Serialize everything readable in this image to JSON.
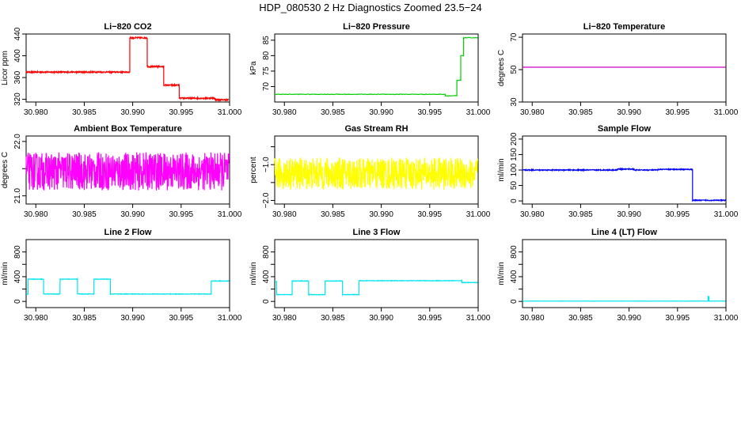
{
  "main_title": "HDP_080530  2 Hz Diagnostics Zoomed 23.5−24",
  "chart_data": [
    {
      "type": "line",
      "title": "Li−820 CO2",
      "ylabel": "Licor ppm",
      "color": "#ff0000",
      "xlim": [
        30.979,
        31.0
      ],
      "ylim": [
        315,
        440
      ],
      "x_ticks": [
        30.98,
        30.985,
        30.99,
        30.995,
        31.0
      ],
      "x_tick_labels": [
        "30.980",
        "30.985",
        "30.990",
        "30.995",
        "31.000"
      ],
      "y_ticks": [
        320,
        360,
        400,
        440
      ],
      "y_tick_labels": [
        "320",
        "360",
        "400",
        "440"
      ],
      "segments": [
        {
          "x": [
            30.979,
            30.9897
          ],
          "y": 370
        },
        {
          "x": [
            30.9897,
            30.9915
          ],
          "y": 433
        },
        {
          "x": [
            30.9915,
            30.9932
          ],
          "y": 380
        },
        {
          "x": [
            30.9932,
            30.9948
          ],
          "y": 346
        },
        {
          "x": [
            30.9948,
            30.9985
          ],
          "y": 322
        },
        {
          "x": [
            30.9985,
            30.9999
          ],
          "y": 319
        }
      ],
      "noise": 1.2,
      "flat": false
    },
    {
      "type": "line",
      "title": "Li−820 Pressure",
      "ylabel": "kPa",
      "color": "#00cc00",
      "xlim": [
        30.979,
        31.0
      ],
      "ylim": [
        65,
        87
      ],
      "x_ticks": [
        30.98,
        30.985,
        30.99,
        30.995,
        31.0
      ],
      "x_tick_labels": [
        "30.980",
        "30.985",
        "30.990",
        "30.995",
        "31.000"
      ],
      "y_ticks": [
        70,
        75,
        80,
        85
      ],
      "y_tick_labels": [
        "70",
        "75",
        "80",
        "85"
      ],
      "segments": [
        {
          "x": [
            30.979,
            30.9966
          ],
          "y": 67.5
        },
        {
          "x": [
            30.9966,
            30.9978
          ],
          "y": 67.0
        },
        {
          "x": [
            30.9978,
            30.9982
          ],
          "y": 72.0
        },
        {
          "x": [
            30.9982,
            30.9985
          ],
          "y": 80.0
        },
        {
          "x": [
            30.9985,
            30.99995
          ],
          "y": 85.8
        }
      ],
      "noise": 0.1,
      "flat": false
    },
    {
      "type": "line",
      "title": "Li−820 Temperature",
      "ylabel": "degrees C",
      "color": "#cc00cc",
      "xlim": [
        30.979,
        31.0
      ],
      "ylim": [
        30,
        72
      ],
      "x_ticks": [
        30.98,
        30.985,
        30.99,
        30.995,
        31.0
      ],
      "x_tick_labels": [
        "30.980",
        "30.985",
        "30.990",
        "30.995",
        "31.000"
      ],
      "y_ticks": [
        30,
        50,
        70
      ],
      "y_tick_labels": [
        "30",
        "50",
        "70"
      ],
      "segments": [
        {
          "x": [
            30.979,
            30.99995
          ],
          "y": 51.5
        }
      ],
      "noise": 0.05,
      "flat": true
    },
    {
      "type": "line",
      "title": "Ambient Box Temperature",
      "ylabel": "degrees C",
      "color": "#ff00ff",
      "xlim": [
        30.979,
        31.0
      ],
      "ylim": [
        20.85,
        22.1
      ],
      "x_ticks": [
        30.98,
        30.985,
        30.99,
        30.995,
        31.0
      ],
      "x_tick_labels": [
        "30.980",
        "30.985",
        "30.990",
        "30.995",
        "31.000"
      ],
      "y_ticks": [
        21.0,
        21.5,
        22.0
      ],
      "y_tick_labels": [
        "21.0",
        "",
        "22.0"
      ],
      "segments": [
        {
          "x": [
            30.979,
            30.99995
          ],
          "y": 21.45
        }
      ],
      "noise": 0.35,
      "flat": false
    },
    {
      "type": "line",
      "title": "Gas Stream RH",
      "ylabel": "percent",
      "color": "#ffff00",
      "xlim": [
        30.979,
        31.0
      ],
      "ylim": [
        -2.1,
        -0.2
      ],
      "x_ticks": [
        30.98,
        30.985,
        30.99,
        30.995,
        31.0
      ],
      "x_tick_labels": [
        "30.980",
        "30.985",
        "30.990",
        "30.995",
        "31.000"
      ],
      "y_ticks": [
        -2.0,
        -1.5,
        -1.0,
        -0.5
      ],
      "y_tick_labels": [
        "−2.0",
        "",
        "−1.0",
        ""
      ],
      "segments": [
        {
          "x": [
            30.979,
            30.99995
          ],
          "y": -1.25
        }
      ],
      "noise": 0.45,
      "flat": false
    },
    {
      "type": "line",
      "title": "Sample Flow",
      "ylabel": "ml/min",
      "color": "#0000ff",
      "xlim": [
        30.979,
        31.0
      ],
      "ylim": [
        -10,
        210
      ],
      "x_ticks": [
        30.98,
        30.985,
        30.99,
        30.995,
        31.0
      ],
      "x_tick_labels": [
        "30.980",
        "30.985",
        "30.990",
        "30.995",
        "31.000"
      ],
      "y_ticks": [
        0,
        50,
        100,
        150,
        200
      ],
      "y_tick_labels": [
        "0",
        "50",
        "100",
        "150",
        "200"
      ],
      "segments": [
        {
          "x": [
            30.979,
            30.9888
          ],
          "y": 100
        },
        {
          "x": [
            30.9888,
            30.9905
          ],
          "y": 103
        },
        {
          "x": [
            30.9905,
            30.993
          ],
          "y": 100
        },
        {
          "x": [
            30.993,
            30.99655
          ],
          "y": 102
        },
        {
          "x": [
            30.99655,
            30.99995
          ],
          "y": 2
        }
      ],
      "noise": 1.5,
      "flat": false
    },
    {
      "type": "line",
      "title": "Line 2 Flow",
      "ylabel": "ml/min",
      "color": "#00e5ee",
      "xlim": [
        30.979,
        31.0
      ],
      "ylim": [
        -100,
        1000
      ],
      "x_ticks": [
        30.98,
        30.985,
        30.99,
        30.995,
        31.0
      ],
      "x_tick_labels": [
        "30.980",
        "30.985",
        "30.990",
        "30.995",
        "31.000"
      ],
      "y_ticks": [
        0,
        200,
        400,
        600,
        800
      ],
      "y_tick_labels": [
        "0",
        "",
        "400",
        "",
        "800"
      ],
      "segments": [
        {
          "x": [
            30.979,
            30.9792
          ],
          "y": 120
        },
        {
          "x": [
            30.9792,
            30.9808
          ],
          "y": 360
        },
        {
          "x": [
            30.9808,
            30.9825
          ],
          "y": 120
        },
        {
          "x": [
            30.9825,
            30.9843
          ],
          "y": 360
        },
        {
          "x": [
            30.9843,
            30.986
          ],
          "y": 120
        },
        {
          "x": [
            30.986,
            30.9877
          ],
          "y": 360
        },
        {
          "x": [
            30.9877,
            30.9981
          ],
          "y": 120
        },
        {
          "x": [
            30.9981,
            30.99995
          ],
          "y": 330
        }
      ],
      "noise": 4,
      "flat": false
    },
    {
      "type": "line",
      "title": "Line 3 Flow",
      "ylabel": "ml/min",
      "color": "#00e5ee",
      "xlim": [
        30.979,
        31.0
      ],
      "ylim": [
        -100,
        1000
      ],
      "x_ticks": [
        30.98,
        30.985,
        30.99,
        30.995,
        31.0
      ],
      "x_tick_labels": [
        "30.980",
        "30.985",
        "30.990",
        "30.995",
        "31.000"
      ],
      "y_ticks": [
        0,
        200,
        400,
        600,
        800
      ],
      "y_tick_labels": [
        "0",
        "",
        "400",
        "",
        "800"
      ],
      "segments": [
        {
          "x": [
            30.979,
            30.9792
          ],
          "y": 320
        },
        {
          "x": [
            30.9792,
            30.9808
          ],
          "y": 110
        },
        {
          "x": [
            30.9808,
            30.9825
          ],
          "y": 330
        },
        {
          "x": [
            30.9825,
            30.9842
          ],
          "y": 110
        },
        {
          "x": [
            30.9842,
            30.986
          ],
          "y": 330
        },
        {
          "x": [
            30.986,
            30.9877
          ],
          "y": 110
        },
        {
          "x": [
            30.9877,
            30.9983
          ],
          "y": 335
        },
        {
          "x": [
            30.9983,
            30.99995
          ],
          "y": 305
        }
      ],
      "noise": 4,
      "flat": false
    },
    {
      "type": "line",
      "title": "Line 4 (LT) Flow",
      "ylabel": "ml/min",
      "color": "#00e5ee",
      "xlim": [
        30.979,
        31.0
      ],
      "ylim": [
        -100,
        1000
      ],
      "x_ticks": [
        30.98,
        30.985,
        30.99,
        30.995,
        31.0
      ],
      "x_tick_labels": [
        "30.980",
        "30.985",
        "30.990",
        "30.995",
        "31.000"
      ],
      "y_ticks": [
        0,
        200,
        400,
        600,
        800
      ],
      "y_tick_labels": [
        "0",
        "",
        "400",
        "",
        "800"
      ],
      "segments": [
        {
          "x": [
            30.979,
            30.99815
          ],
          "y": 5
        },
        {
          "x": [
            30.99815,
            30.99825
          ],
          "y": 80
        },
        {
          "x": [
            30.99825,
            30.99995
          ],
          "y": 5
        }
      ],
      "noise": 1,
      "flat": false
    }
  ]
}
